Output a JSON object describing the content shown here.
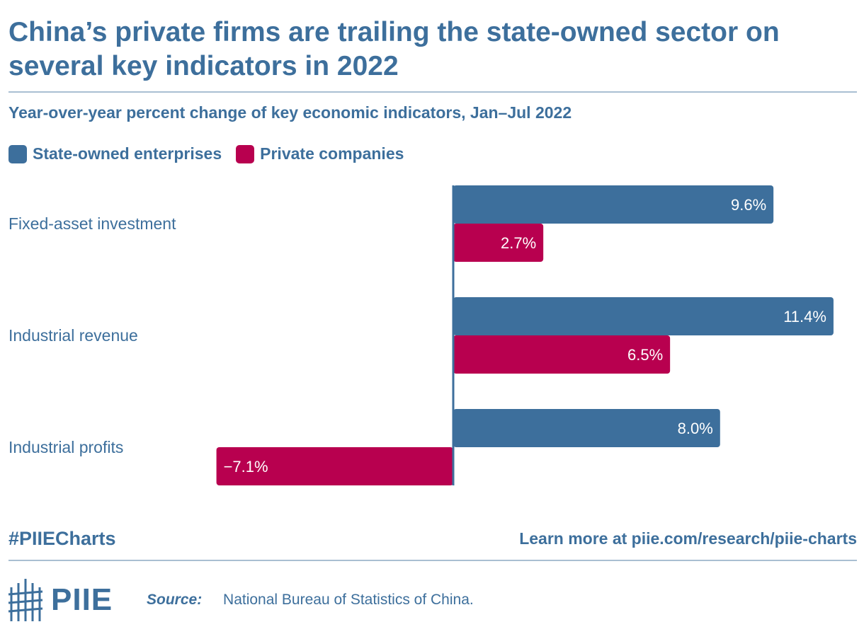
{
  "header": {
    "title": "China’s private firms are trailing the state-owned sector on several key indicators in 2022",
    "subtitle": "Year-over-year percent change of key economic indicators, Jan–Jul 2022"
  },
  "colors": {
    "state_owned": "#3d6f9c",
    "private": "#b8004f"
  },
  "chart_data": {
    "type": "bar",
    "orientation": "horizontal",
    "title": "China’s private firms are trailing the state-owned sector on several key indicators in 2022",
    "subtitle": "Year-over-year percent change of key economic indicators, Jan–Jul 2022",
    "categories": [
      "Fixed-asset investment",
      "Industrial revenue",
      "Industrial profits"
    ],
    "series": [
      {
        "name": "State-owned enterprises",
        "values": [
          9.6,
          11.4,
          8.0
        ],
        "labels": [
          "9.6%",
          "11.4%",
          "8.0%"
        ]
      },
      {
        "name": "Private companies",
        "values": [
          2.7,
          6.5,
          -7.1
        ],
        "labels": [
          "2.7%",
          "6.5%",
          "−7.1%"
        ]
      }
    ],
    "xlim": [
      -7.1,
      11.4
    ],
    "grid": false,
    "legend": "top-left",
    "data_labels": "inside-end"
  },
  "footer": {
    "hashtag": "#PIIECharts",
    "learn_more": "Learn more at piie.com/research/piie-charts",
    "logo_text": "PIIE",
    "source_label": "Source:",
    "source_text": "National Bureau of Statistics of China."
  }
}
